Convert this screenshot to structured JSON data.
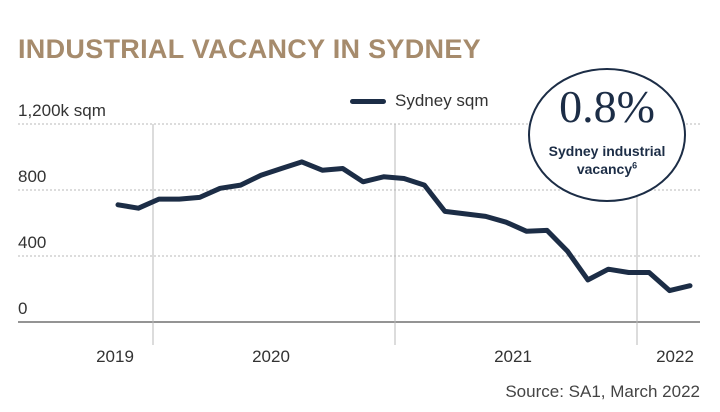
{
  "colors": {
    "title": "#a68b6c",
    "line": "#1c2d46",
    "grid": "#b8b8b8",
    "axis": "#555555"
  },
  "chart_data": {
    "type": "line",
    "title": "INDUSTRIAL VACANCY IN SYDNEY",
    "ylabel": "",
    "xlabel": "",
    "y_unit_label": "1,200k sqm",
    "ylim": [
      0,
      1200
    ],
    "y_ticks": [
      {
        "value": 1200,
        "label": "1,200k sqm"
      },
      {
        "value": 800,
        "label": "800"
      },
      {
        "value": 400,
        "label": "400"
      },
      {
        "value": 0,
        "label": "0"
      }
    ],
    "x_tick_labels": [
      "2019",
      "2020",
      "2021",
      "2022"
    ],
    "grid": true,
    "legend_position": "top-right",
    "series": [
      {
        "name": "Sydney sqm",
        "values": [
          710,
          690,
          745,
          745,
          755,
          810,
          830,
          890,
          930,
          970,
          920,
          930,
          850,
          880,
          870,
          830,
          670,
          655,
          640,
          605,
          550,
          555,
          430,
          255,
          320,
          300,
          300,
          190,
          220
        ]
      }
    ],
    "source": "Source: SA1, March 2022"
  },
  "callout": {
    "value": "0.8%",
    "label": "Sydney industrial vacancy",
    "footnote": "6"
  }
}
